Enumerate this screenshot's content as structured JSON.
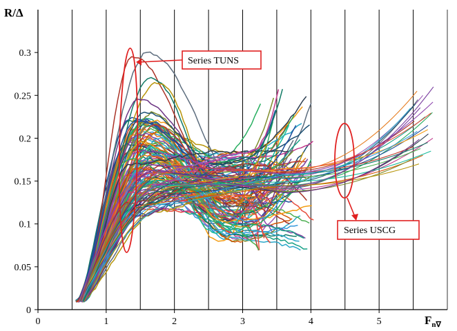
{
  "chart_data": {
    "type": "line",
    "title": "",
    "xlabel": "F",
    "xlabel_sub": "n∇",
    "ylabel": "R/Δ",
    "xlim": [
      0,
      6
    ],
    "ylim": [
      0,
      0.35
    ],
    "x_ticks": [
      "0",
      "1",
      "2",
      "3",
      "4",
      "5"
    ],
    "y_ticks": [
      "0",
      "0.05",
      "0.1",
      "0.15",
      "0.2",
      "0.25",
      "0.3"
    ],
    "vertical_grid_x": [
      0.5,
      1,
      1.5,
      2,
      2.5,
      3,
      3.5,
      4,
      4.5,
      5,
      5.5
    ],
    "horizontal_grid": false,
    "annotations": [
      {
        "text": "Series TUNS",
        "color": "#e02020"
      },
      {
        "text": "Series USCG",
        "color": "#e02020"
      }
    ],
    "series_groups": [
      {
        "name": "Series TUNS",
        "x_range": [
          0.55,
          4.05
        ],
        "note": "approx. 90 model-hull curves; hump near Fn 1.3-1.8, then spread",
        "peak_values_sample": [
          0.3,
          0.295,
          0.27,
          0.265,
          0.245,
          0.23,
          0.22,
          0.215,
          0.21,
          0.205,
          0.2,
          0.195,
          0.19,
          0.185,
          0.18,
          0.175,
          0.17,
          0.165,
          0.16,
          0.155,
          0.15,
          0.145,
          0.14,
          0.135,
          0.13,
          0.125,
          0.12,
          0.115,
          0.11
        ]
      },
      {
        "name": "Series USCG",
        "x_range": [
          0.6,
          5.75
        ],
        "note": "approx. 20 smoother curves ending 0.17-0.26 near Fn 5.5-5.8",
        "end_values_sample": [
          0.26,
          0.255,
          0.25,
          0.245,
          0.24,
          0.235,
          0.23,
          0.225,
          0.22,
          0.215,
          0.21,
          0.205,
          0.2,
          0.195,
          0.19,
          0.185,
          0.18,
          0.175,
          0.17
        ]
      }
    ],
    "palette": [
      "#1f4e9c",
      "#c0392b",
      "#4caf50",
      "#7b3fa0",
      "#2aa7c9",
      "#f39c12",
      "#1abc9c",
      "#8e44ad",
      "#e67e22",
      "#27ae60",
      "#2c3e50",
      "#d35400",
      "#3498db",
      "#9b59b6",
      "#16a085",
      "#c0398b",
      "#7f8c2d",
      "#e74c3c",
      "#5d6d7e",
      "#a93226",
      "#117a65",
      "#b7950b",
      "#6c3483",
      "#1b4f72"
    ]
  }
}
